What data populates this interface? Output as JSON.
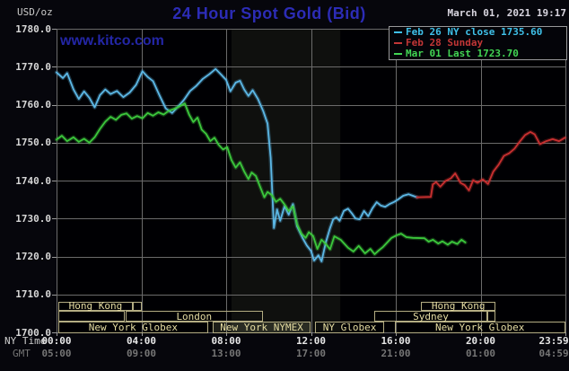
{
  "header": {
    "title": "24 Hour Spot Gold (Bid)",
    "title_color": "#2c2cb6",
    "datetime": "March 01, 2021 19:17",
    "datetime_color": "#d9d6e0",
    "unit_label": "USD/oz",
    "watermark": "www.kitco.com",
    "watermark_color": "#2326a6"
  },
  "legend": {
    "items": [
      {
        "label": "Feb 26 NY close 1735.60",
        "color": "#3fc0e8"
      },
      {
        "label": "Feb 28 Sunday",
        "color": "#c23636"
      },
      {
        "label": "Mar 01 Last 1723.70",
        "color": "#42d653"
      }
    ]
  },
  "y_axis": {
    "min": 1700,
    "max": 1780,
    "step": 10,
    "labels": [
      "1780.0",
      "1770.0",
      "1760.0",
      "1750.0",
      "1740.0",
      "1730.0",
      "1720.0",
      "1710.0",
      "1700.0"
    ]
  },
  "x_axis": {
    "ny_label": "NY Time",
    "gmt_label": "GMT",
    "ticks": [
      {
        "hour": 0,
        "ny": "00:00",
        "gmt": "05:00"
      },
      {
        "hour": 4,
        "ny": "04:00",
        "gmt": "09:00"
      },
      {
        "hour": 8,
        "ny": "08:00",
        "gmt": "13:00"
      },
      {
        "hour": 12,
        "ny": "12:00",
        "gmt": "17:00"
      },
      {
        "hour": 16,
        "ny": "16:00",
        "gmt": "21:00"
      },
      {
        "hour": 20,
        "ny": "20:00",
        "gmt": "01:00"
      },
      {
        "hour": 23.983,
        "ny": "23:59",
        "gmt": "04:59",
        "align": "right"
      }
    ]
  },
  "sessions": {
    "rows": [
      {
        "boxes": [
          {
            "label": "Hong Kong",
            "start": 0.08,
            "end": 3.6
          },
          {
            "label": "",
            "start": 3.6,
            "end": 4.02
          },
          {
            "label": "Hong Kong",
            "start": 17.2,
            "end": 20.7
          }
        ]
      },
      {
        "boxes": [
          {
            "label": "",
            "start": 0.08,
            "end": 3.2
          },
          {
            "label": "London",
            "start": 3.25,
            "end": 9.73
          },
          {
            "label": "Sydney",
            "start": 15.0,
            "end": 20.3
          },
          {
            "label": "",
            "start": 20.3,
            "end": 20.7
          }
        ]
      },
      {
        "boxes": [
          {
            "label": "New York Globex",
            "start": 0.08,
            "end": 7.15
          },
          {
            "label": "New York NYMEX",
            "start": 7.35,
            "end": 12.0,
            "filled": true
          },
          {
            "label": "NY Globex",
            "start": 12.2,
            "end": 15.45
          },
          {
            "label": "New York Globex",
            "start": 15.95,
            "end": 23.98
          }
        ]
      }
    ]
  },
  "chart_data": {
    "type": "line",
    "title": "24 Hour Spot Gold (Bid)",
    "xlabel": "NY Time (hours)",
    "ylabel": "USD/oz",
    "ylim": [
      1700,
      1780
    ],
    "xlim_hours": [
      0,
      23.983
    ],
    "grid": true,
    "legend_position": "top-right",
    "highlight_band_hours": [
      8.25,
      13.38
    ],
    "series": [
      {
        "name": "Feb 26 NY close 1735.60",
        "color": "#5cb8e6",
        "points": [
          [
            0,
            1768.5
          ],
          [
            0.3,
            1767
          ],
          [
            0.5,
            1768.3
          ],
          [
            0.8,
            1764
          ],
          [
            1.05,
            1761.5
          ],
          [
            1.3,
            1763.5
          ],
          [
            1.55,
            1761.8
          ],
          [
            1.8,
            1759.3
          ],
          [
            2.05,
            1762.5
          ],
          [
            2.3,
            1764
          ],
          [
            2.55,
            1762.8
          ],
          [
            2.85,
            1763.6
          ],
          [
            3.15,
            1762
          ],
          [
            3.45,
            1763.2
          ],
          [
            3.75,
            1765.2
          ],
          [
            4.05,
            1768.8
          ],
          [
            4.3,
            1767.3
          ],
          [
            4.55,
            1766.2
          ],
          [
            4.85,
            1762.5
          ],
          [
            5.15,
            1759
          ],
          [
            5.45,
            1757.8
          ],
          [
            5.75,
            1759.6
          ],
          [
            6.0,
            1761.2
          ],
          [
            6.3,
            1763.6
          ],
          [
            6.6,
            1765
          ],
          [
            6.9,
            1766.8
          ],
          [
            7.2,
            1768
          ],
          [
            7.5,
            1769.4
          ],
          [
            7.75,
            1768
          ],
          [
            8.0,
            1766.5
          ],
          [
            8.2,
            1763.5
          ],
          [
            8.45,
            1765.8
          ],
          [
            8.65,
            1766.3
          ],
          [
            8.85,
            1764
          ],
          [
            9.05,
            1762.3
          ],
          [
            9.25,
            1763.8
          ],
          [
            9.5,
            1761.5
          ],
          [
            9.75,
            1758.3
          ],
          [
            9.95,
            1755
          ],
          [
            10.1,
            1746
          ],
          [
            10.25,
            1727.5
          ],
          [
            10.4,
            1732.4
          ],
          [
            10.55,
            1729.4
          ],
          [
            10.75,
            1733.2
          ],
          [
            10.95,
            1731
          ],
          [
            11.15,
            1733.8
          ],
          [
            11.35,
            1727.9
          ],
          [
            11.6,
            1724.9
          ],
          [
            11.8,
            1722.9
          ],
          [
            12.0,
            1721.5
          ],
          [
            12.15,
            1718.9
          ],
          [
            12.35,
            1720.3
          ],
          [
            12.5,
            1718.7
          ],
          [
            12.7,
            1723.7
          ],
          [
            12.9,
            1727.5
          ],
          [
            13.05,
            1729.8
          ],
          [
            13.2,
            1730.3
          ],
          [
            13.35,
            1729.4
          ],
          [
            13.55,
            1732
          ],
          [
            13.75,
            1732.6
          ],
          [
            13.95,
            1731.2
          ],
          [
            14.1,
            1730
          ],
          [
            14.3,
            1729.8
          ],
          [
            14.5,
            1732
          ],
          [
            14.7,
            1730.6
          ],
          [
            14.9,
            1732.7
          ],
          [
            15.1,
            1734.3
          ],
          [
            15.3,
            1733.4
          ],
          [
            15.5,
            1733.1
          ],
          [
            15.7,
            1733.8
          ],
          [
            15.9,
            1734.3
          ],
          [
            16.1,
            1735
          ],
          [
            16.35,
            1736
          ],
          [
            16.6,
            1736.4
          ],
          [
            17.0,
            1735.6
          ]
        ]
      },
      {
        "name": "Feb 28 Sunday",
        "color": "#c93030",
        "points": [
          [
            17.0,
            1735.6
          ],
          [
            17.65,
            1735.7
          ],
          [
            17.75,
            1739
          ],
          [
            17.9,
            1739.6
          ],
          [
            18.1,
            1738.4
          ],
          [
            18.35,
            1739.9
          ],
          [
            18.6,
            1740.6
          ],
          [
            18.8,
            1741.9
          ],
          [
            19.05,
            1739.4
          ],
          [
            19.25,
            1738.8
          ],
          [
            19.45,
            1737.4
          ],
          [
            19.65,
            1740.1
          ],
          [
            19.85,
            1739.4
          ],
          [
            20.1,
            1740.3
          ],
          [
            20.35,
            1739.1
          ],
          [
            20.6,
            1742.4
          ],
          [
            20.85,
            1744.2
          ],
          [
            21.1,
            1746.5
          ],
          [
            21.35,
            1747.2
          ],
          [
            21.6,
            1748.4
          ],
          [
            21.85,
            1750.3
          ],
          [
            22.1,
            1752
          ],
          [
            22.35,
            1752.8
          ],
          [
            22.55,
            1752.2
          ],
          [
            22.8,
            1749.6
          ],
          [
            23.1,
            1750.4
          ],
          [
            23.4,
            1750.9
          ],
          [
            23.7,
            1750.4
          ],
          [
            23.98,
            1751.3
          ]
        ]
      },
      {
        "name": "Mar 01 Last 1723.70",
        "color": "#3cc83c",
        "points": [
          [
            0,
            1750.8
          ],
          [
            0.25,
            1751.8
          ],
          [
            0.5,
            1750.4
          ],
          [
            0.8,
            1751.4
          ],
          [
            1.05,
            1750.2
          ],
          [
            1.3,
            1751
          ],
          [
            1.55,
            1750
          ],
          [
            1.8,
            1751.4
          ],
          [
            2.05,
            1753.6
          ],
          [
            2.3,
            1755.5
          ],
          [
            2.55,
            1756.8
          ],
          [
            2.8,
            1756
          ],
          [
            3.05,
            1757.3
          ],
          [
            3.3,
            1757.7
          ],
          [
            3.55,
            1756.3
          ],
          [
            3.8,
            1757
          ],
          [
            4.05,
            1756.4
          ],
          [
            4.3,
            1757.8
          ],
          [
            4.55,
            1757.1
          ],
          [
            4.8,
            1758
          ],
          [
            5.05,
            1757.4
          ],
          [
            5.3,
            1758.4
          ],
          [
            5.6,
            1759
          ],
          [
            5.85,
            1759.7
          ],
          [
            6.05,
            1760.3
          ],
          [
            6.25,
            1757.4
          ],
          [
            6.45,
            1755.4
          ],
          [
            6.65,
            1756.6
          ],
          [
            6.85,
            1753.4
          ],
          [
            7.05,
            1752.3
          ],
          [
            7.25,
            1750.4
          ],
          [
            7.45,
            1751.3
          ],
          [
            7.65,
            1749.4
          ],
          [
            7.85,
            1748.2
          ],
          [
            8.05,
            1748.8
          ],
          [
            8.25,
            1745.4
          ],
          [
            8.45,
            1743.4
          ],
          [
            8.65,
            1744.8
          ],
          [
            8.85,
            1742.4
          ],
          [
            9.05,
            1740.4
          ],
          [
            9.2,
            1742.1
          ],
          [
            9.4,
            1741.2
          ],
          [
            9.6,
            1738.4
          ],
          [
            9.8,
            1735.6
          ],
          [
            9.95,
            1737
          ],
          [
            10.15,
            1736.2
          ],
          [
            10.35,
            1734.4
          ],
          [
            10.55,
            1735.2
          ],
          [
            10.75,
            1733.7
          ],
          [
            10.95,
            1732
          ],
          [
            11.15,
            1733.2
          ],
          [
            11.35,
            1728.4
          ],
          [
            11.55,
            1726
          ],
          [
            11.75,
            1724.9
          ],
          [
            11.9,
            1726.4
          ],
          [
            12.1,
            1725.4
          ],
          [
            12.3,
            1722
          ],
          [
            12.5,
            1724.4
          ],
          [
            12.7,
            1723.3
          ],
          [
            12.9,
            1721.9
          ],
          [
            13.1,
            1725.3
          ],
          [
            13.4,
            1724.4
          ],
          [
            13.75,
            1722.3
          ],
          [
            14.0,
            1721.3
          ],
          [
            14.25,
            1722.8
          ],
          [
            14.55,
            1720.8
          ],
          [
            14.8,
            1722
          ],
          [
            15.0,
            1720.6
          ],
          [
            15.2,
            1721.6
          ],
          [
            15.4,
            1722.5
          ],
          [
            15.8,
            1724.9
          ],
          [
            16.05,
            1725.6
          ],
          [
            16.25,
            1726
          ],
          [
            16.5,
            1725.1
          ],
          [
            16.8,
            1724.9
          ],
          [
            17.35,
            1724.8
          ],
          [
            17.55,
            1723.9
          ],
          [
            17.75,
            1724.4
          ],
          [
            18.0,
            1723.4
          ],
          [
            18.2,
            1724
          ],
          [
            18.45,
            1723.1
          ],
          [
            18.65,
            1723.9
          ],
          [
            18.9,
            1723.3
          ],
          [
            19.1,
            1724.4
          ],
          [
            19.28,
            1723.7
          ]
        ]
      }
    ]
  }
}
